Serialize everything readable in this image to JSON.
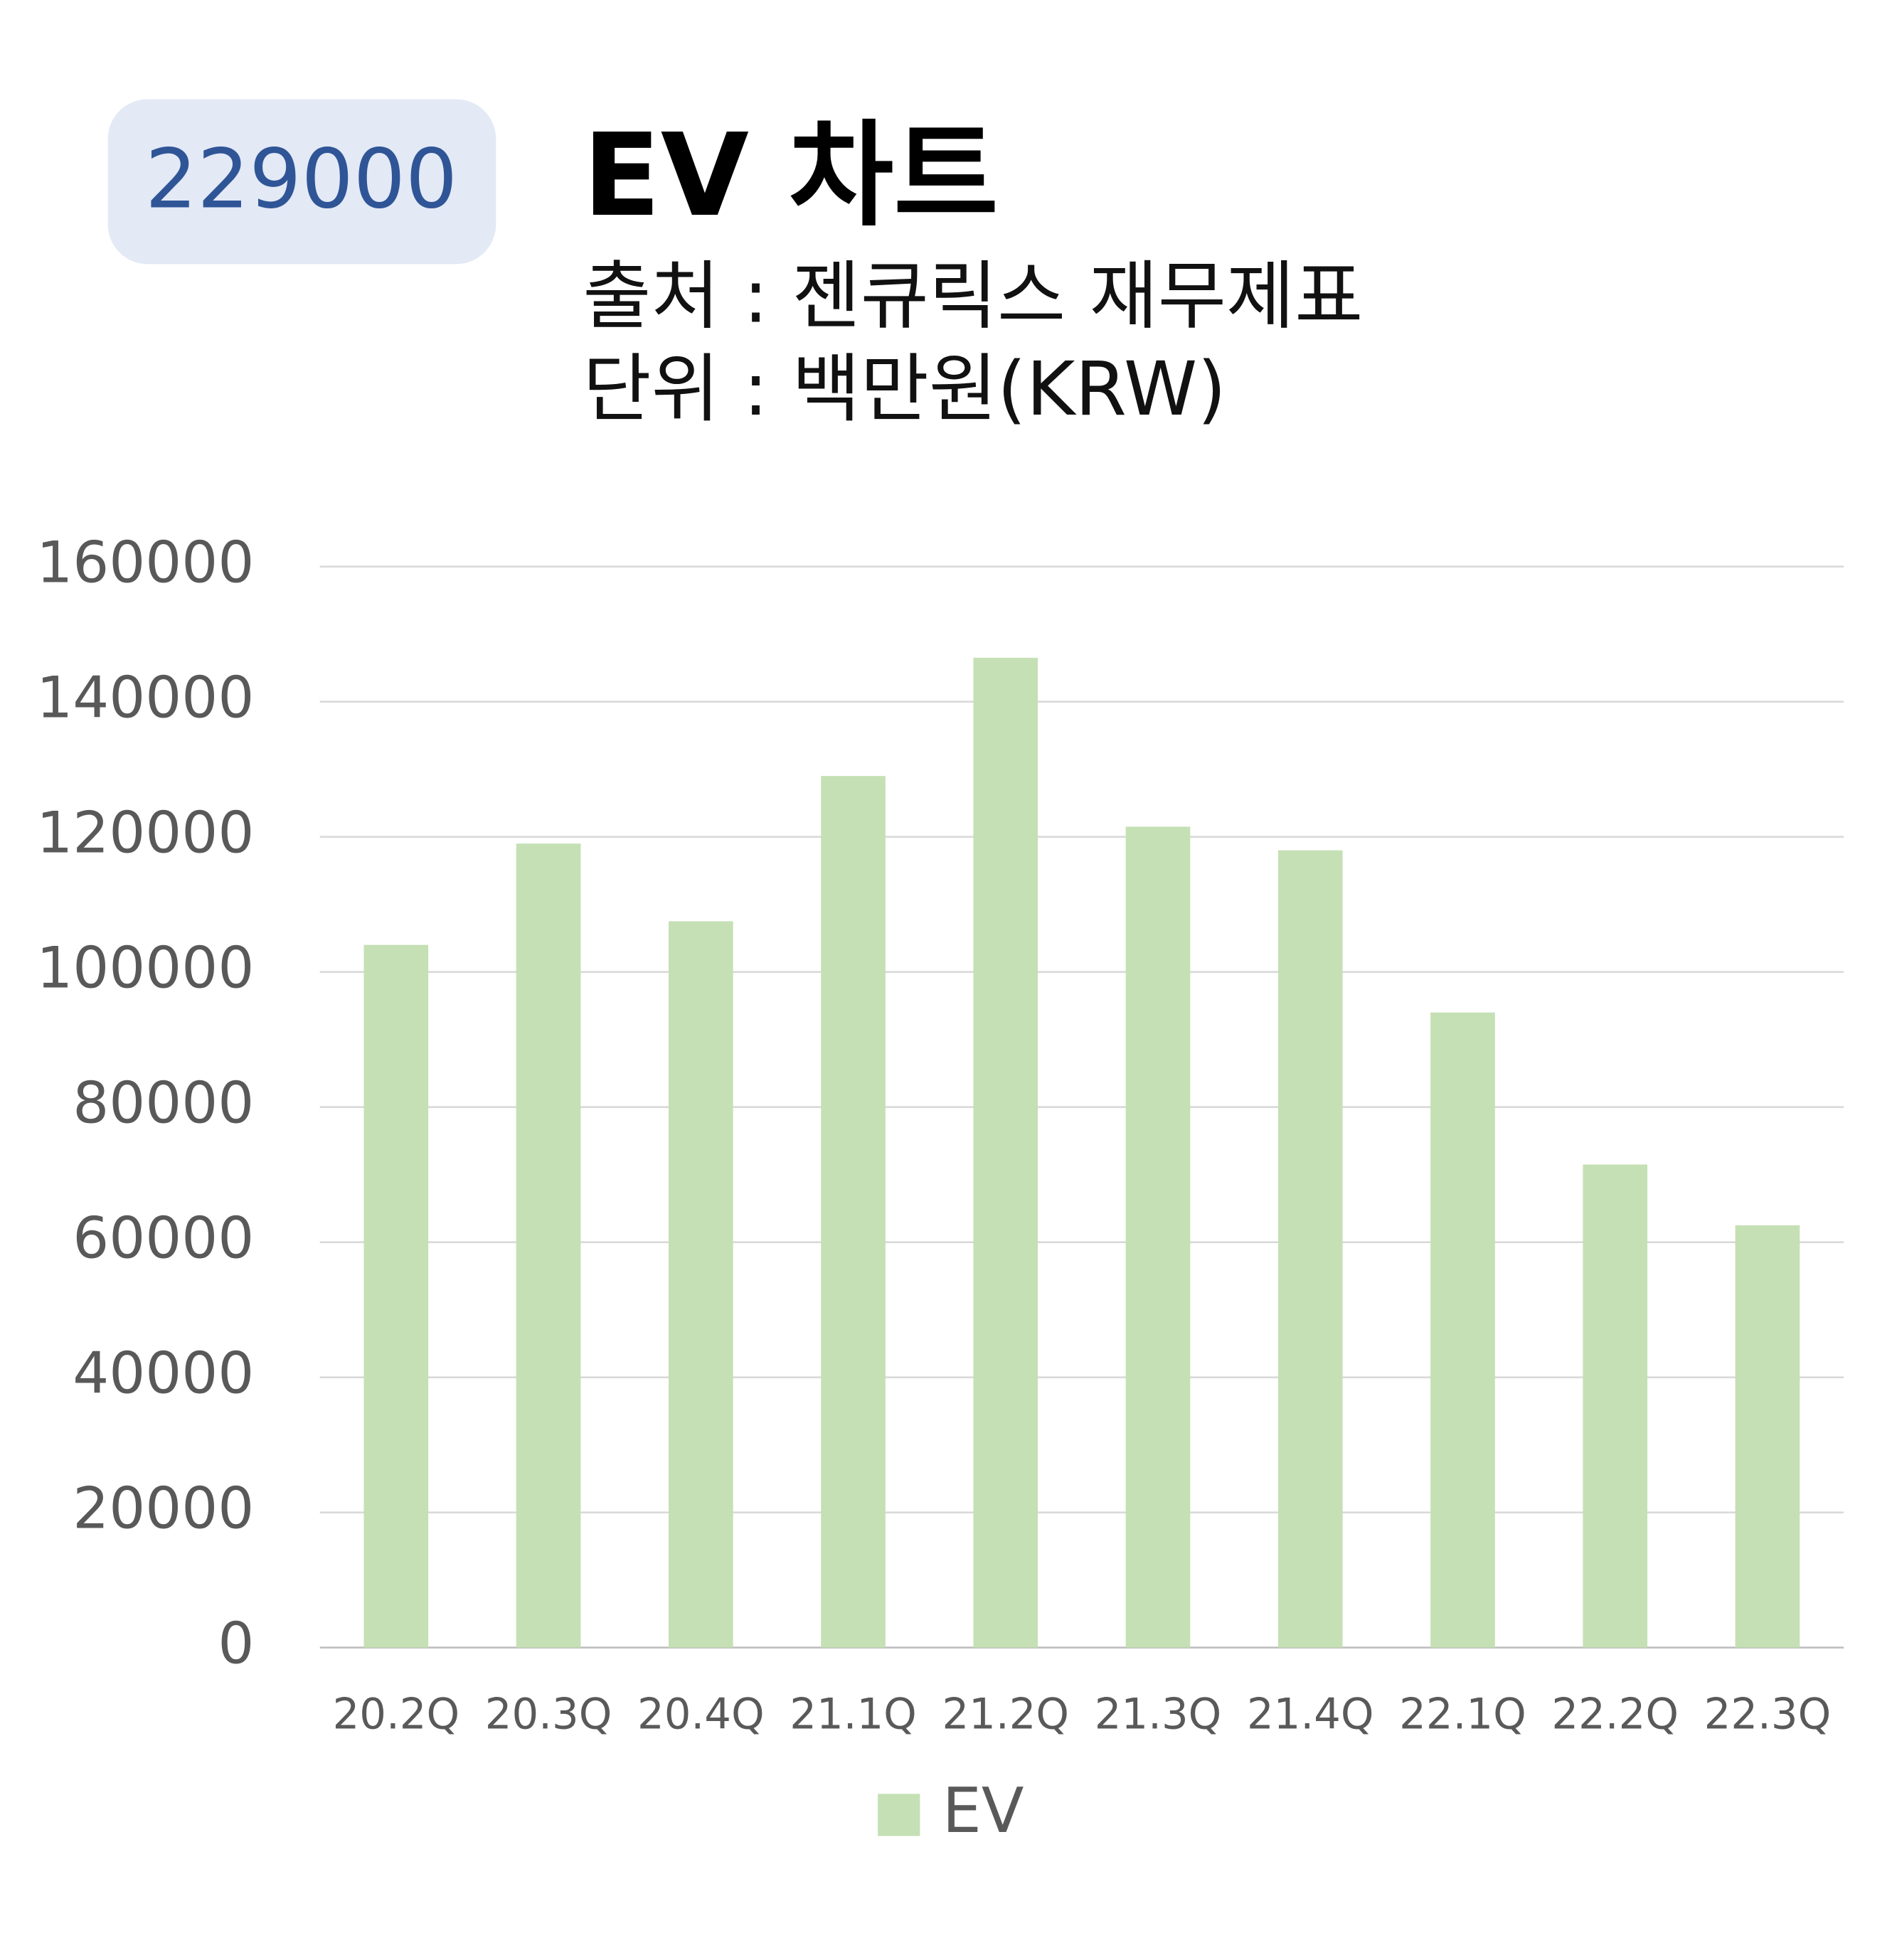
{
  "badge": "229000",
  "chart_data": {
    "type": "bar",
    "title": "EV 차트",
    "subtitle": [
      "출처 : 젠큐릭스 재무제표",
      "단위 : 백만원(KRW)"
    ],
    "categories": [
      "20.2Q",
      "20.3Q",
      "20.4Q",
      "21.1Q",
      "21.2Q",
      "21.3Q",
      "21.4Q",
      "22.1Q",
      "22.2Q",
      "22.3Q"
    ],
    "series": [
      {
        "name": "EV",
        "color": "#c5e0b4",
        "values": [
          104000,
          119000,
          107500,
          129000,
          146500,
          121500,
          118000,
          94000,
          71500,
          62500
        ]
      }
    ],
    "ylim": [
      0,
      160000
    ],
    "yticks": [
      0,
      20000,
      40000,
      60000,
      80000,
      100000,
      120000,
      140000,
      160000
    ],
    "grid": true,
    "legend": "bottom"
  }
}
